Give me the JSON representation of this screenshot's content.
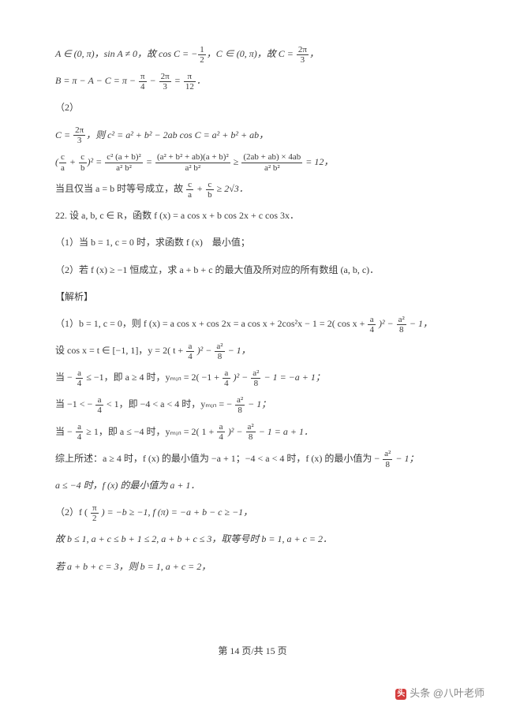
{
  "lines": {
    "l1a": "A ∈ (0, π)，sin A ≠ 0，故 cos C = −",
    "l1f": {
      "num": "1",
      "den": "2"
    },
    "l1b": "，C ∈ (0, π)，故 C = ",
    "l1g": {
      "num": "2π",
      "den": "3"
    },
    "l1c": "，",
    "l2a": "B = π − A − C = π − ",
    "l2f1": {
      "num": "π",
      "den": "4"
    },
    "l2m": " − ",
    "l2f2": {
      "num": "2π",
      "den": "3"
    },
    "l2e": " = ",
    "l2f3": {
      "num": "π",
      "den": "12"
    },
    "l2d": "．",
    "l3": "（2）",
    "l4a": "C = ",
    "l4f": {
      "num": "2π",
      "den": "3"
    },
    "l4b": "，则 c² = a² + b² − 2ab cos C = a² + b² + ab，",
    "l5a": "(",
    "l5f1": {
      "num": "c",
      "den": "a"
    },
    "l5p": " + ",
    "l5f2": {
      "num": "c",
      "den": "b"
    },
    "l5b": ")² = ",
    "l5f3": {
      "num": "c² (a + b)²",
      "den": "a² b²"
    },
    "l5e1": " = ",
    "l5f4": {
      "num": "(a² + b² + ab)(a + b)²",
      "den": "a² b²"
    },
    "l5e2": " ≥ ",
    "l5f5": {
      "num": "(2ab + ab) × 4ab",
      "den": "a² b²"
    },
    "l5c": " = 12，",
    "l6a": "当且仅当 a = b 时等号成立，故 ",
    "l6f1": {
      "num": "c",
      "den": "a"
    },
    "l6p": " + ",
    "l6f2": {
      "num": "c",
      "den": "b"
    },
    "l6b": " ≥ 2√3．",
    "l7": "22.  设 a, b, c ∈ R，函数 f (x) = a cos x + b cos 2x + c cos 3x．",
    "l8": "（1）当 b = 1, c = 0 时，求函数 f (x)　最小值；",
    "l9": "（2）若 f (x) ≥ −1 恒成立，求 a + b + c 的最大值及所对应的所有数组 (a, b, c)．",
    "l10": "【解析】",
    "l11a": "（1）b = 1, c = 0，则 f (x) = a cos x + cos 2x = a cos x + 2cos²x − 1 = 2( cos x + ",
    "l11f1": {
      "num": "a",
      "den": "4"
    },
    "l11b": " )² − ",
    "l11f2": {
      "num": "a²",
      "den": "8"
    },
    "l11c": " − 1，",
    "l12a": "设 cos x = t ∈ [−1, 1]，y = 2( t + ",
    "l12f1": {
      "num": "a",
      "den": "4"
    },
    "l12b": " )² − ",
    "l12f2": {
      "num": "a²",
      "den": "8"
    },
    "l12c": " − 1，",
    "l13a": "当 − ",
    "l13f1": {
      "num": "a",
      "den": "4"
    },
    "l13b": " ≤ −1，即 a ≥ 4 时，yₘᵢₙ = 2( −1 + ",
    "l13f2": {
      "num": "a",
      "den": "4"
    },
    "l13c": " )² − ",
    "l13f3": {
      "num": "a²",
      "den": "8"
    },
    "l13d": " − 1 = −a + 1；",
    "l14a": "当 −1 < − ",
    "l14f1": {
      "num": "a",
      "den": "4"
    },
    "l14b": " < 1，即 −4 < a < 4 时，yₘᵢₙ = − ",
    "l14f2": {
      "num": "a²",
      "den": "8"
    },
    "l14c": " − 1；",
    "l15a": "当 − ",
    "l15f1": {
      "num": "a",
      "den": "4"
    },
    "l15b": " ≥ 1，即 a ≤ −4 时，yₘᵢₙ = 2( 1 + ",
    "l15f2": {
      "num": "a",
      "den": "4"
    },
    "l15c": " )² − ",
    "l15f3": {
      "num": "a²",
      "den": "8"
    },
    "l15d": " − 1 = a + 1．",
    "l16a": "综上所述：a ≥ 4 时，f (x) 的最小值为 −a + 1；−4 < a < 4 时，f (x) 的最小值为 − ",
    "l16f": {
      "num": "a²",
      "den": "8"
    },
    "l16b": " − 1；",
    "l17": "a ≤ −4 时，f (x) 的最小值为 a + 1．",
    "l18a": "（2）f ( ",
    "l18f": {
      "num": "π",
      "den": "2"
    },
    "l18b": " ) = −b ≥ −1, f (π) = −a + b − c ≥ −1，",
    "l19": "故 b ≤ 1, a + c ≤ b + 1 ≤ 2, a + b + c ≤ 3，取等号时 b = 1, a + c = 2．",
    "l20": "若 a + b + c = 3，则 b = 1, a + c = 2，"
  },
  "footer": "第 14 页/共 15 页",
  "watermark": "头条 @八叶老师"
}
